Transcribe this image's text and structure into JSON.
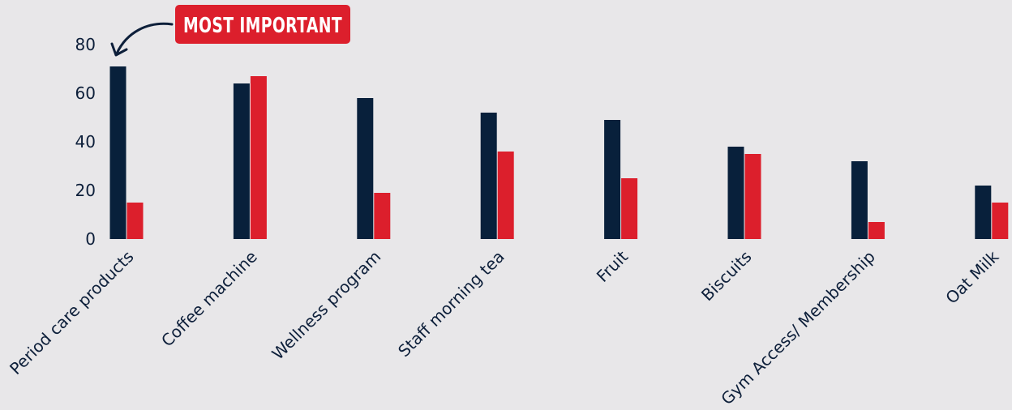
{
  "chart_data": {
    "type": "bar",
    "title": "",
    "xlabel": "",
    "ylabel": "",
    "ylim": [
      0,
      80
    ],
    "yticks": [
      0,
      20,
      40,
      60,
      80
    ],
    "grid": false,
    "legend": "none",
    "categories": [
      "Period care products",
      "Coffee machine",
      "Wellness program",
      "Staff morning tea",
      "Fruit",
      "Biscuits",
      "Gym Access/ Membership",
      "Oat Milk"
    ],
    "series": [
      {
        "color": "#08203b",
        "values": [
          71,
          64,
          58,
          52,
          49,
          38,
          32,
          22
        ]
      },
      {
        "color": "#dc1f2c",
        "values": [
          15,
          67,
          19,
          36,
          25,
          35,
          7,
          15
        ]
      }
    ],
    "annotation": {
      "text": "MOST IMPORTANT",
      "background": "#dc1f2c",
      "text_color": "#ffffff",
      "arrow_color": "#0d1f3a",
      "target_category": "Period care products"
    }
  }
}
